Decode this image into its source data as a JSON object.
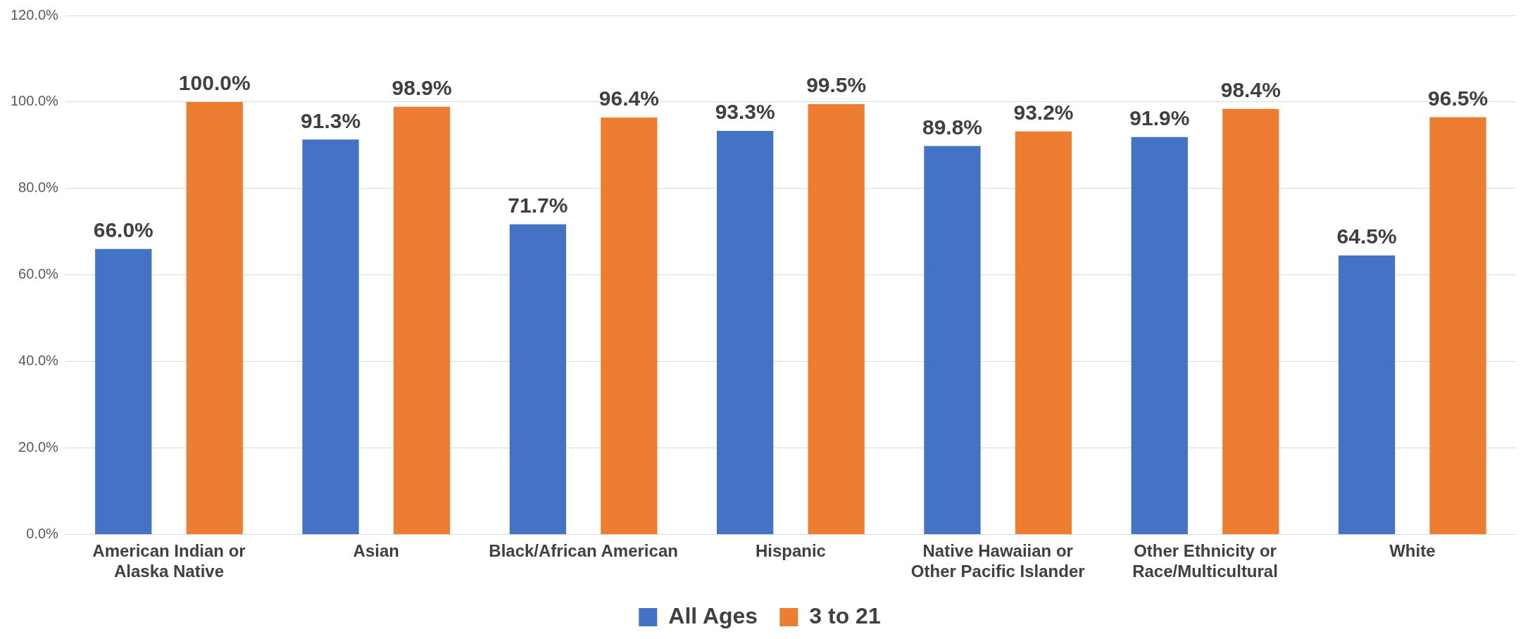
{
  "chart_data": {
    "type": "bar",
    "categories": [
      "American Indian or Alaska Native",
      "Asian",
      "Black/African American",
      "Hispanic",
      "Native Hawaiian or Other Pacific Islander",
      "Other Ethnicity or Race/Multicultural",
      "White"
    ],
    "series": [
      {
        "name": "All Ages",
        "color": "#4472c4",
        "values": [
          66.0,
          91.3,
          71.7,
          93.3,
          89.8,
          91.9,
          64.5
        ],
        "value_labels": [
          "66.0%",
          "91.3%",
          "71.7%",
          "93.3%",
          "89.8%",
          "91.9%",
          "64.5%"
        ]
      },
      {
        "name": "3 to 21",
        "color": "#ed7d31",
        "values": [
          100.0,
          98.9,
          96.4,
          99.5,
          93.2,
          98.4,
          96.5
        ],
        "value_labels": [
          "100.0%",
          "98.9%",
          "96.4%",
          "99.5%",
          "93.2%",
          "98.4%",
          "96.5%"
        ]
      }
    ],
    "ylim": [
      0,
      120
    ],
    "yticks": [
      {
        "value": 0,
        "label": "0.0%"
      },
      {
        "value": 20,
        "label": "20.0%"
      },
      {
        "value": 40,
        "label": "40.0%"
      },
      {
        "value": 60,
        "label": "60.0%"
      },
      {
        "value": 80,
        "label": "80.0%"
      },
      {
        "value": 100,
        "label": "100.0%"
      },
      {
        "value": 120,
        "label": "120.0%"
      }
    ],
    "grid": "y",
    "legend": "bottom"
  }
}
